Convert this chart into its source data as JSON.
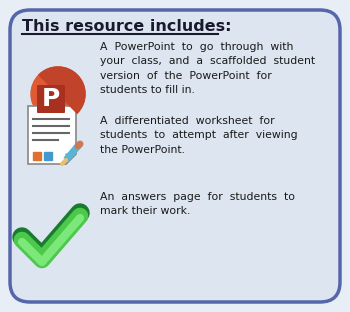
{
  "bg_color": "#e8eef5",
  "card_color": "#dde6f0",
  "card_border_color": "#5566aa",
  "title": "This resource includes:",
  "title_color": "#1a1a2e",
  "title_fontsize": 11.5,
  "text1": "A  PowerPoint  to  go  through  with\nyour  class,  and  a  scaffolded  student\nversion  of  the  PowerPoint  for\nstudents to fill in.",
  "text2": "A  differentiated  worksheet  for\nstudents  to  attempt  after  viewing\nthe PowerPoint.",
  "text3": "An  answers  page  for  students  to\nmark their work.",
  "text_color": "#1a1a1a",
  "text_fontsize": 7.8,
  "text_linespacing": 1.55
}
